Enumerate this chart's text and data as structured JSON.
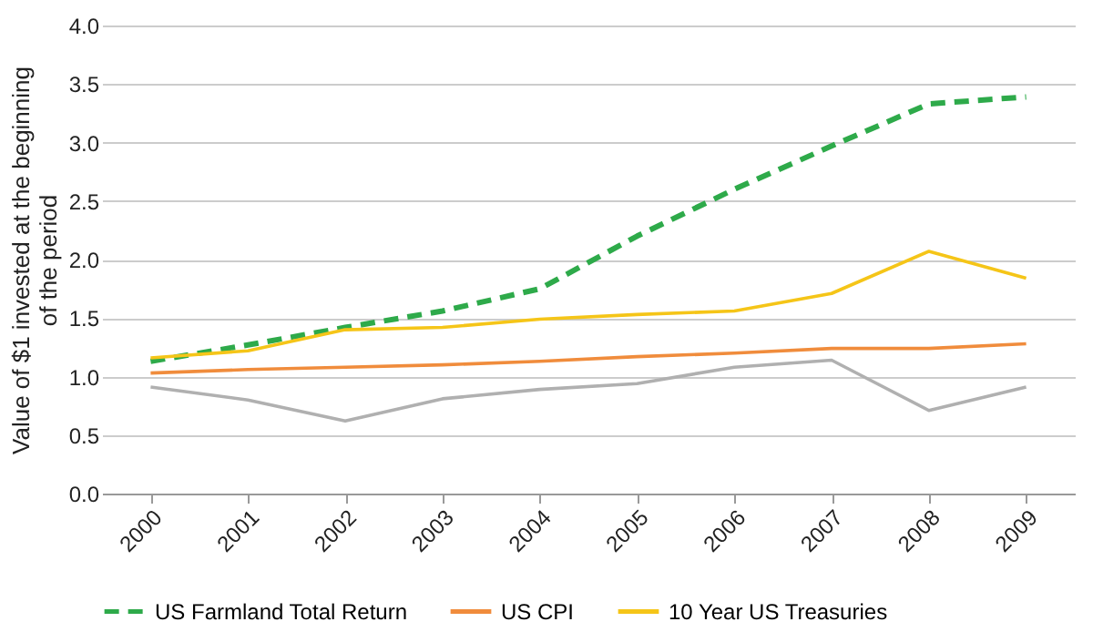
{
  "chart_data": {
    "type": "line",
    "ylabel": "Value of $1 invested at the beginning of the period",
    "categories": [
      "2000",
      "2001",
      "2002",
      "2003",
      "2004",
      "2005",
      "2006",
      "2007",
      "2008",
      "2009"
    ],
    "series": [
      {
        "name": "US Farmland Total Return",
        "color": "#2eaa4a",
        "line_style": "dashed",
        "values": [
          1.13,
          1.27,
          1.42,
          1.56,
          1.75,
          2.2,
          2.6,
          2.97,
          3.33,
          3.39
        ]
      },
      {
        "name": "US CPI",
        "color": "#f08c3c",
        "values": [
          1.03,
          1.06,
          1.08,
          1.1,
          1.13,
          1.17,
          1.2,
          1.24,
          1.24,
          1.28
        ]
      },
      {
        "color": "#b0b0b0",
        "values": [
          0.91,
          0.8,
          0.62,
          0.81,
          0.89,
          0.94,
          1.08,
          1.14,
          0.71,
          0.91
        ]
      },
      {
        "name": "10 Year US Treasuries",
        "color": "#f5c518",
        "values": [
          1.16,
          1.22,
          1.4,
          1.42,
          1.49,
          1.53,
          1.56,
          1.71,
          2.07,
          1.84
        ]
      }
    ],
    "ylim": [
      0,
      4
    ],
    "yticks": [
      {
        "value": 0,
        "label": "0.0"
      },
      0.5,
      {
        "value": 1,
        "label": "1.0"
      },
      1.5,
      {
        "value": 2,
        "label": "2.0"
      },
      2.5,
      {
        "value": 3,
        "label": "3.0"
      },
      3.5,
      {
        "value": 4,
        "label": "4.0"
      }
    ],
    "grid": "y",
    "legend": "bottom",
    "line_style": "solid",
    "marker": "none"
  }
}
